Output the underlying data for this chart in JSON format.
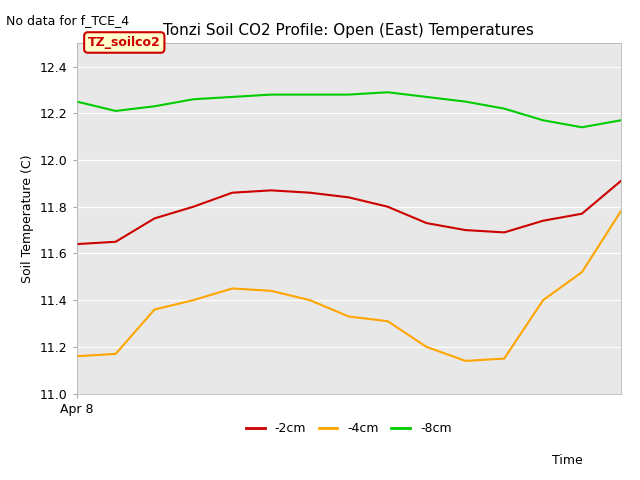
{
  "title": "Tonzi Soil CO2 Profile: Open (East) Temperatures",
  "ylabel": "Soil Temperature (C)",
  "xlabel": "Time",
  "annotation_top_left": "No data for f_TCE_4",
  "legend_label": "TZ_soilco2",
  "xlim": [
    0,
    14
  ],
  "ylim": [
    11.0,
    12.5
  ],
  "yticks": [
    11.0,
    11.2,
    11.4,
    11.6,
    11.8,
    12.0,
    12.2,
    12.4
  ],
  "xstart_label": "Apr 8",
  "series": {
    "neg2cm": {
      "color": "#cc0000",
      "label": "-2cm",
      "x": [
        0,
        1,
        2,
        3,
        4,
        5,
        6,
        7,
        8,
        9,
        10,
        11,
        12,
        13,
        14
      ],
      "y": [
        11.64,
        11.65,
        11.75,
        11.8,
        11.86,
        11.87,
        11.86,
        11.84,
        11.8,
        11.73,
        11.7,
        11.69,
        11.74,
        11.77,
        11.91
      ]
    },
    "neg4cm": {
      "color": "#ffa500",
      "label": "-4cm",
      "x": [
        0,
        1,
        2,
        3,
        4,
        5,
        6,
        7,
        8,
        9,
        10,
        11,
        12,
        13,
        14
      ],
      "y": [
        11.16,
        11.17,
        11.36,
        11.4,
        11.45,
        11.44,
        11.4,
        11.33,
        11.31,
        11.2,
        11.14,
        11.15,
        11.4,
        11.52,
        11.78
      ]
    },
    "neg8cm": {
      "color": "#00cc00",
      "label": "-8cm",
      "x": [
        0,
        1,
        2,
        3,
        4,
        5,
        6,
        7,
        8,
        9,
        10,
        11,
        12,
        13,
        14
      ],
      "y": [
        12.25,
        12.21,
        12.23,
        12.26,
        12.27,
        12.28,
        12.28,
        12.28,
        12.29,
        12.27,
        12.25,
        12.22,
        12.17,
        12.14,
        12.17
      ]
    }
  },
  "plot_bg": "#e8e8e8",
  "fig_bg": "#ffffff",
  "legend_box_facecolor": "#ffffcc",
  "legend_box_edgecolor": "#cc0000",
  "grid_color": "#ffffff",
  "annotation_color": "#000000",
  "title_fontsize": 11,
  "label_fontsize": 9,
  "tick_fontsize": 9
}
